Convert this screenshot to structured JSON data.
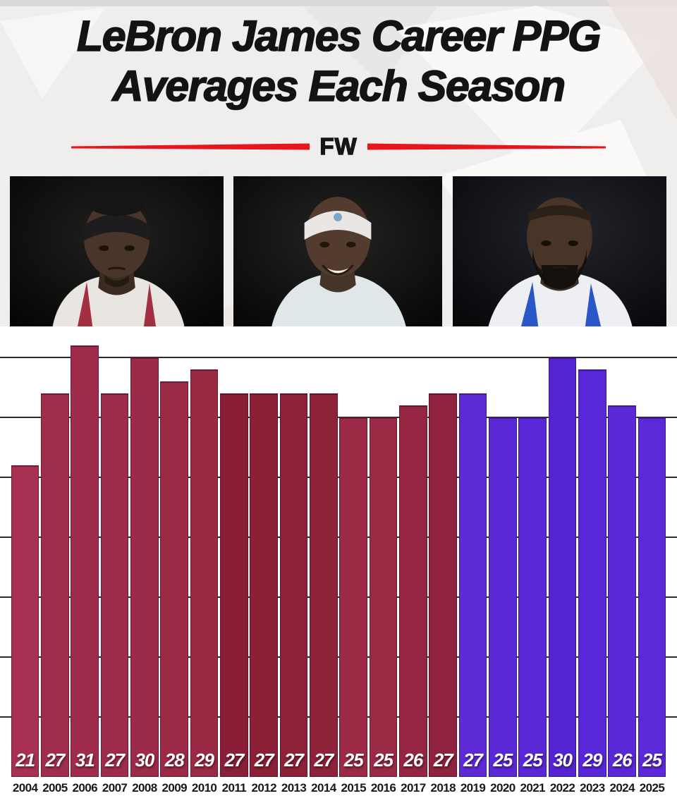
{
  "header": {
    "title_line1": "LeBron James Career PPG",
    "title_line2": "Averages Each Season",
    "brand": "FW",
    "accent_red": "#e8151f",
    "background_color": "#f0eeec",
    "title_color": "#131313"
  },
  "photos": [
    {
      "icon": "lebron-young-cavs-black-headband-portrait"
    },
    {
      "icon": "lebron-white-headband-smiling-portrait"
    },
    {
      "icon": "lebron-lakers-bearded-portrait"
    }
  ],
  "chart_data": {
    "type": "bar",
    "title": "LeBron James Career PPG Averages Each Season",
    "xlabel": "",
    "ylabel": "",
    "categories": [
      "2004",
      "2005",
      "2006",
      "2007",
      "2008",
      "2009",
      "2010",
      "2011",
      "2012",
      "2013",
      "2014",
      "2015",
      "2016",
      "2017",
      "2018",
      "2019",
      "2020",
      "2021",
      "2022",
      "2023",
      "2024",
      "2025"
    ],
    "values": [
      21,
      27,
      31,
      27,
      30,
      28,
      29,
      27,
      27,
      27,
      27,
      25,
      25,
      26,
      27,
      27,
      25,
      25,
      30,
      29,
      26,
      25
    ],
    "bar_labels": [
      "21",
      "27",
      "31",
      "27",
      "30",
      "28",
      "29",
      "27",
      "27",
      "27",
      "27",
      "25",
      "25",
      "26",
      "27",
      "27",
      "25",
      "25",
      "30",
      "29",
      "26",
      "25"
    ],
    "bar_colors": [
      "#a73053",
      "#a12d4d",
      "#9f2c4a",
      "#9e2b49",
      "#9d2a47",
      "#9c2a46",
      "#9a2944",
      "#8a1e37",
      "#8b2036",
      "#8d2138",
      "#8e2238",
      "#9c2a45",
      "#9b2a44",
      "#952541",
      "#8f223c",
      "#5d2ad4",
      "#5b28d6",
      "#5a27d6",
      "#5524d2",
      "#5827d8",
      "#5a28d6",
      "#5b29d7"
    ],
    "color_groups": [
      {
        "color": "#962540",
        "label_years": "2004-2018"
      },
      {
        "color": "#5a27d5",
        "label_years": "2019-2025"
      }
    ],
    "gridline_values": [
      30,
      25,
      20,
      15,
      10,
      5,
      0
    ],
    "ylim": [
      -5,
      31.6
    ],
    "grid": true,
    "legend": "none",
    "grid_color": "#2d2b2c",
    "value_label_color": "#ffffff",
    "year_label_color": "#191919"
  }
}
